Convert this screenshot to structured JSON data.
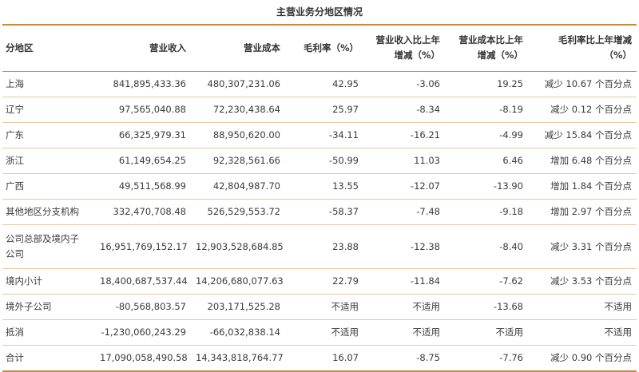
{
  "title": "主营业务分地区情况",
  "headers": [
    "分地区",
    "营业收入",
    "营业成本",
    "毛利率（%）",
    "营业收入比上年\n增减（%）",
    "营业成本比上年\n增减（%）",
    "毛利率比上年增减\n（%）"
  ],
  "rows": [
    [
      "上海",
      "841,895,433.36",
      "480,307,231.06",
      "42.95",
      "-3.06",
      "19.25",
      "减少 10.67 个百分点"
    ],
    [
      "辽宁",
      "97,565,040.88",
      "72,230,438.64",
      "25.97",
      "-8.34",
      "-8.19",
      "减少 0.12 个百分点"
    ],
    [
      "广东",
      "66,325,979.31",
      "88,950,620.00",
      "-34.11",
      "-16.21",
      "-4.99",
      "减少 15.84 个百分点"
    ],
    [
      "浙江",
      "61,149,654.25",
      "92,328,561.66",
      "-50.99",
      "11.03",
      "6.46",
      "增加 6.48 个百分点"
    ],
    [
      "广西",
      "49,511,568.99",
      "42,804,987.70",
      "13.55",
      "-12.07",
      "-13.90",
      "增加 1.84 个百分点"
    ],
    [
      "其他地区分支机构",
      "332,470,708.48",
      "526,529,553.72",
      "-58.37",
      "-7.48",
      "-9.18",
      "增加 2.97 个百分点"
    ],
    [
      "公司总部及境内子\n公司",
      "16,951,769,152.17",
      "12,903,528,684.85",
      "23.88",
      "-12.38",
      "-8.40",
      "减少 3.31 个百分点"
    ],
    [
      "境内小计",
      "18,400,687,537.44",
      "14,206,680,077.63",
      "22.79",
      "-11.84",
      "-7.62",
      "减少 3.53 个百分点"
    ],
    [
      "境外子公司",
      "-80,568,803.57",
      "203,171,525.28",
      "不适用",
      "不适用",
      "-13.68",
      "不适用"
    ],
    [
      "抵消",
      "-1,230,060,243.29",
      "-66,032,838.14",
      "不适用",
      "不适用",
      "不适用",
      "不适用"
    ],
    [
      "合计",
      "17,090,058,490.58",
      "14,343,818,764.77",
      "16.07",
      "-8.75",
      "-7.76",
      "减少 0.90 个百分点"
    ]
  ]
}
